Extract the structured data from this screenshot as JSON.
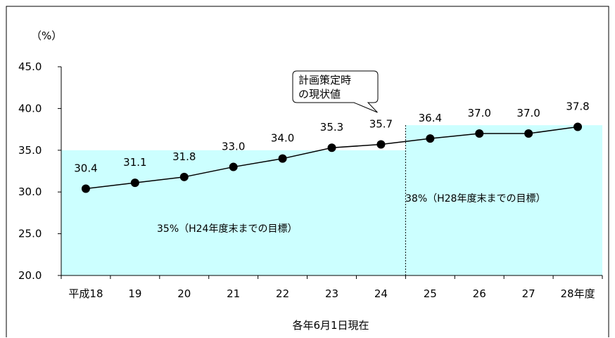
{
  "chart_data": {
    "type": "line",
    "unit_label": "（%）",
    "xlabel": "各年6月1日現在",
    "categories": [
      "平成18",
      "19",
      "20",
      "21",
      "22",
      "23",
      "24",
      "25",
      "26",
      "27",
      "28年度"
    ],
    "y_ticks": [
      "45.0",
      "40.0",
      "35.0",
      "30.0",
      "25.0",
      "20.0"
    ],
    "ylim": [
      20,
      45
    ],
    "grid": false,
    "series": [
      {
        "values": [
          30.4,
          31.1,
          31.8,
          33.0,
          34.0,
          35.3,
          35.7,
          36.4,
          37.0,
          37.0,
          37.8
        ],
        "labels": [
          "30.4",
          "31.1",
          "31.8",
          "33.0",
          "34.0",
          "35.3",
          "35.7",
          "36.4",
          "37.0",
          "37.0",
          "37.8"
        ]
      }
    ],
    "targets": [
      {
        "label": "35%（H24年度末までの目標）",
        "value": 35,
        "from_index": 0,
        "to_index": 6,
        "color": "#ccffff"
      },
      {
        "label": "38%（H28年度末までの目標）",
        "value": 38,
        "from_index": 7,
        "to_index": 10,
        "color": "#ccffff"
      }
    ],
    "callout": {
      "lines": [
        "計画策定時",
        "の現状値"
      ],
      "points_to_index": 6
    }
  }
}
